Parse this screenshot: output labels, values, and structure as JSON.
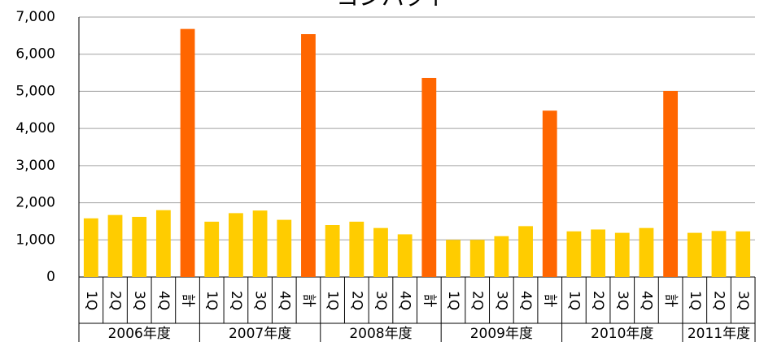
{
  "chart_data": {
    "type": "bar",
    "title": "コンパクト",
    "groups": [
      {
        "name": "2006年度",
        "categories": [
          "1Q",
          "2Q",
          "3Q",
          "4Q",
          "計"
        ],
        "values": [
          1580,
          1670,
          1620,
          1800,
          6680
        ],
        "colors": [
          "#ffcc00",
          "#ffcc00",
          "#ffcc00",
          "#ffcc00",
          "#ff6600"
        ]
      },
      {
        "name": "2007年度",
        "categories": [
          "1Q",
          "2Q",
          "3Q",
          "4Q",
          "計"
        ],
        "values": [
          1490,
          1720,
          1790,
          1540,
          6540
        ],
        "colors": [
          "#ffcc00",
          "#ffcc00",
          "#ffcc00",
          "#ffcc00",
          "#ff6600"
        ]
      },
      {
        "name": "2008年度",
        "categories": [
          "1Q",
          "2Q",
          "3Q",
          "4Q",
          "計"
        ],
        "values": [
          1400,
          1490,
          1320,
          1150,
          5360
        ],
        "colors": [
          "#ffcc00",
          "#ffcc00",
          "#ffcc00",
          "#ffcc00",
          "#ff6600"
        ]
      },
      {
        "name": "2009年度",
        "categories": [
          "1Q",
          "2Q",
          "3Q",
          "4Q",
          "計"
        ],
        "values": [
          1000,
          1000,
          1100,
          1370,
          4480
        ],
        "colors": [
          "#ffcc00",
          "#ffcc00",
          "#ffcc00",
          "#ffcc00",
          "#ff6600"
        ]
      },
      {
        "name": "2010年度",
        "categories": [
          "1Q",
          "2Q",
          "3Q",
          "4Q",
          "計"
        ],
        "values": [
          1230,
          1280,
          1190,
          1320,
          5010
        ],
        "colors": [
          "#ffcc00",
          "#ffcc00",
          "#ffcc00",
          "#ffcc00",
          "#ff6600"
        ]
      },
      {
        "name": "2011年度",
        "categories": [
          "1Q",
          "2Q",
          "3Q"
        ],
        "values": [
          1190,
          1240,
          1230
        ],
        "colors": [
          "#ffcc00",
          "#ffcc00",
          "#ffcc00"
        ]
      }
    ],
    "ylim": [
      0,
      7000
    ],
    "yticks": [
      0,
      {
        "value": 1000,
        "label": "1,000"
      },
      {
        "value": 2000,
        "label": "2,000"
      },
      {
        "value": 3000,
        "label": "3,000"
      },
      {
        "value": 4000,
        "label": "4,000"
      },
      {
        "value": 5000,
        "label": "5,000"
      },
      {
        "value": 6000,
        "label": "6,000"
      },
      {
        "value": 7000,
        "label": "7,000"
      }
    ],
    "grid": true
  }
}
